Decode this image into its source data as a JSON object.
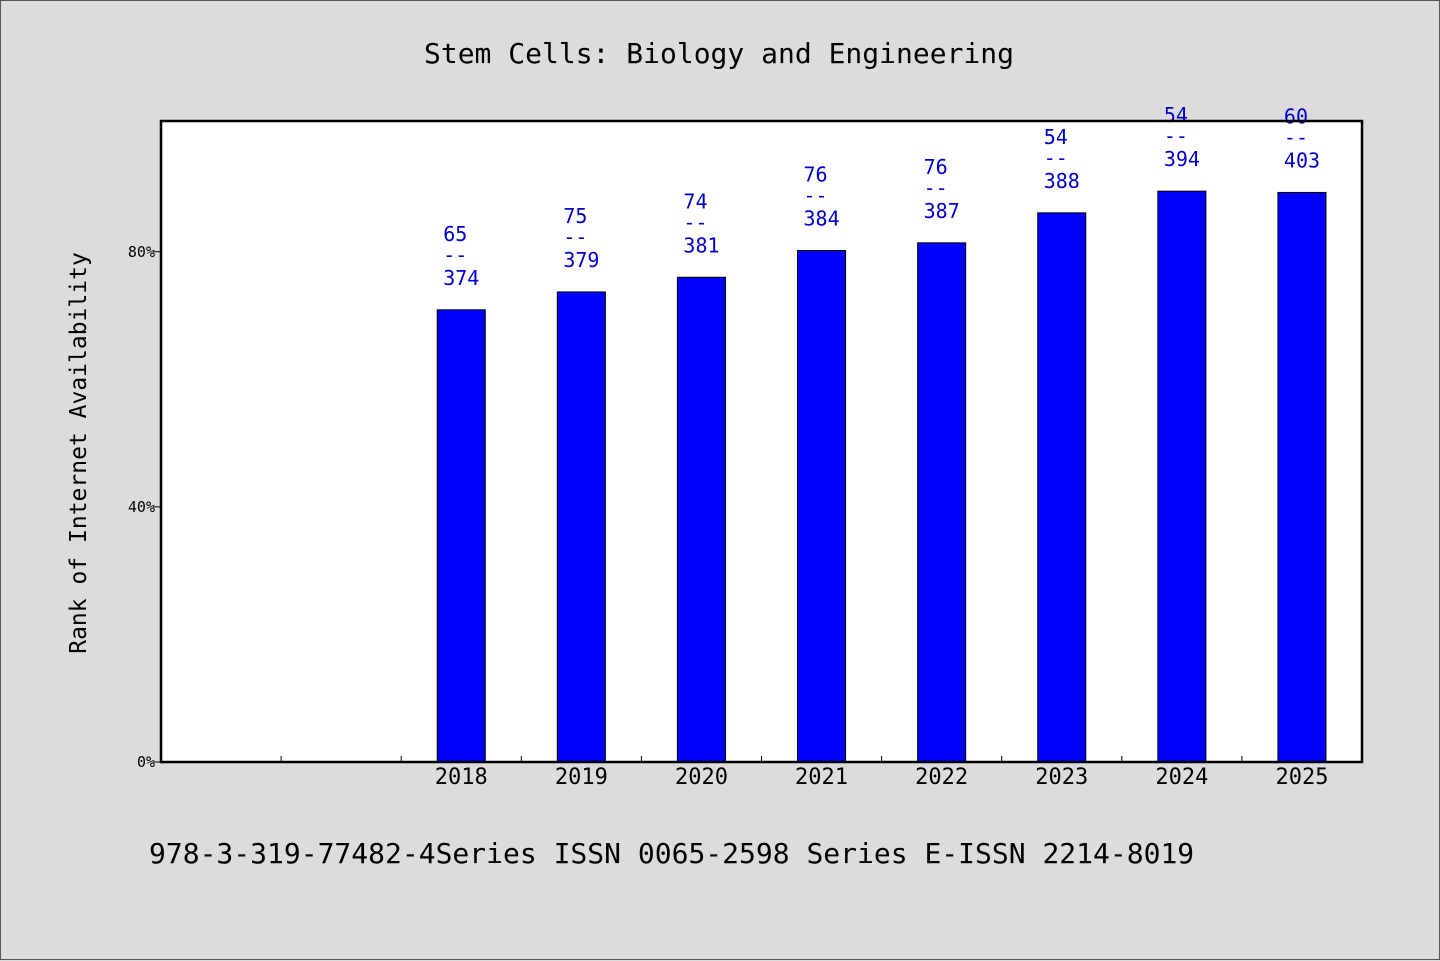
{
  "chart_data": {
    "type": "bar",
    "title": "Stem Cells: Biology and Engineering",
    "ylabel": "Rank of Internet Availability",
    "xlabel": "",
    "categories": [
      "",
      "",
      "2018",
      "2019",
      "2020",
      "2021",
      "2022",
      "2023",
      "2024",
      "2025"
    ],
    "values": [
      null,
      null,
      70.9,
      73.7,
      76.0,
      80.2,
      81.4,
      86.1,
      89.5,
      89.3
    ],
    "data_labels": [
      null,
      null,
      {
        "top": "65",
        "mid": "--",
        "bottom": "374"
      },
      {
        "top": "75",
        "mid": "--",
        "bottom": "379"
      },
      {
        "top": "74",
        "mid": "--",
        "bottom": "381"
      },
      {
        "top": "76",
        "mid": "--",
        "bottom": "384"
      },
      {
        "top": "76",
        "mid": "--",
        "bottom": "387"
      },
      {
        "top": "54",
        "mid": "--",
        "bottom": "388"
      },
      {
        "top": "54",
        "mid": "--",
        "bottom": "394"
      },
      {
        "top": "60",
        "mid": "--",
        "bottom": "403"
      }
    ],
    "ylim": [
      0,
      100.5
    ],
    "yticks": [
      {
        "value": 0,
        "label": "0%"
      },
      {
        "value": 40,
        "label": "40%"
      },
      {
        "value": 80,
        "label": "80%"
      }
    ],
    "grid": false,
    "legend": "none",
    "bar_color": "#0000ff",
    "label_color": "#0000cd",
    "plot_background": "#ffffff"
  },
  "footer": {
    "text": "978-3-319-77482-4Series ISSN 0065-2598 Series E-ISSN 2214-8019"
  }
}
